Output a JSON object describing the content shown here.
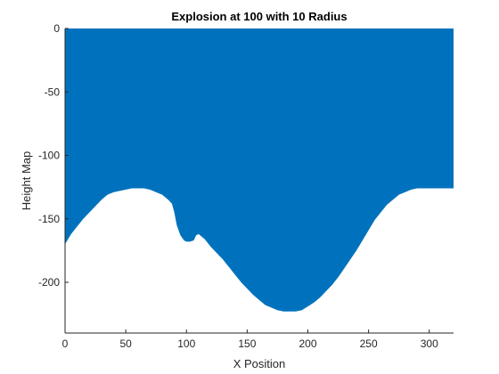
{
  "chart_data": {
    "type": "area",
    "title": "Explosion at 100 with 10 Radius",
    "xlabel": "X Position",
    "ylabel": "Height Map",
    "xlim": [
      0,
      320
    ],
    "ylim": [
      -240,
      0
    ],
    "xticks": [
      0,
      50,
      100,
      150,
      200,
      250,
      300
    ],
    "yticks": [
      0,
      -50,
      -100,
      -150,
      -200
    ],
    "xtick_labels": [
      "0",
      "50",
      "100",
      "150",
      "200",
      "250",
      "300"
    ],
    "ytick_labels": [
      "0",
      "-50",
      "-100",
      "-150",
      "-200"
    ],
    "fill_color": "#0072BD",
    "grid": false,
    "series": [
      {
        "x": [
          0,
          5,
          10,
          15,
          20,
          25,
          30,
          35,
          40,
          45,
          50,
          55,
          60,
          65,
          70,
          75,
          80,
          85,
          88,
          90,
          92,
          95,
          98,
          100,
          103,
          106,
          108,
          110,
          115,
          120,
          125,
          130,
          135,
          140,
          145,
          150,
          155,
          160,
          165,
          170,
          175,
          180,
          185,
          190,
          195,
          200,
          205,
          210,
          215,
          220,
          225,
          230,
          235,
          240,
          245,
          250,
          255,
          260,
          265,
          270,
          275,
          280,
          285,
          290,
          295,
          300,
          305,
          310,
          315,
          320
        ],
        "y": [
          -170,
          -162,
          -156,
          -150,
          -145,
          -140,
          -135,
          -131,
          -129,
          -128,
          -127,
          -126,
          -126,
          -126,
          -127,
          -129,
          -131,
          -135,
          -138,
          -145,
          -155,
          -163,
          -167,
          -168,
          -168,
          -167,
          -163,
          -162,
          -166,
          -172,
          -177,
          -182,
          -188,
          -194,
          -200,
          -205,
          -210,
          -214,
          -218,
          -220,
          -222,
          -223,
          -223,
          -223,
          -222,
          -219,
          -216,
          -212,
          -207,
          -202,
          -196,
          -189,
          -182,
          -175,
          -167,
          -159,
          -151,
          -145,
          -139,
          -135,
          -131,
          -129,
          -127,
          -126,
          -126,
          -126,
          -126,
          -126,
          -126,
          -126
        ]
      }
    ]
  }
}
